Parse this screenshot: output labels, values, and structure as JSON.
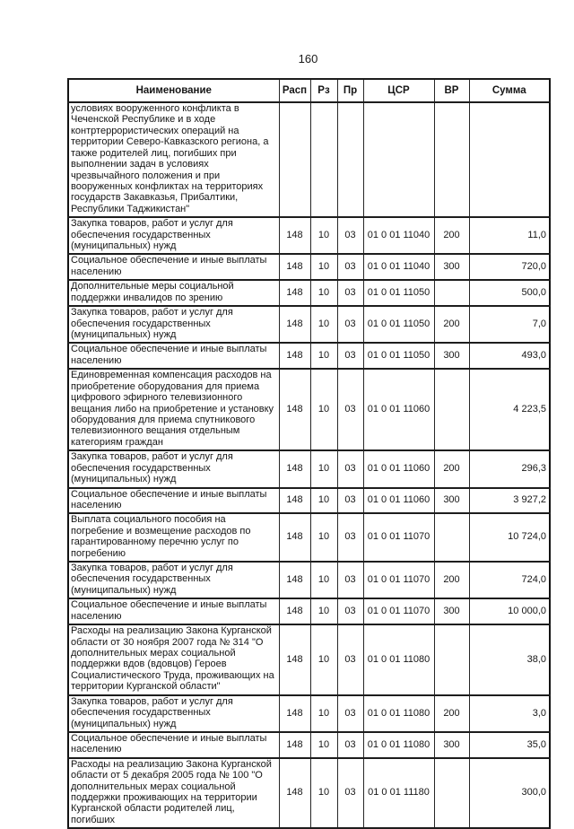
{
  "page": {
    "number": "160"
  },
  "table": {
    "column_keys": [
      "name",
      "rasp",
      "rz",
      "pr",
      "csr",
      "vr",
      "summa"
    ],
    "headers": {
      "name": "Наименование",
      "rasp": "Расп",
      "rz": "Рз",
      "pr": "Пр",
      "csr": "ЦСР",
      "vr": "ВР",
      "summa": "Сумма"
    },
    "rows": [
      {
        "name": "условиях вооруженного конфликта в Чеченской Республике и в ходе контртеррористических операций на территории Северо-Кавказского региона, а также родителей лиц, погибших при выполнении задач в условиях чрезвычайного положения и при вооруженных конфликтах на территориях государств Закавказья, Прибалтики, Республики Таджикистан\"",
        "rasp": "",
        "rz": "",
        "pr": "",
        "csr": "",
        "vr": "",
        "summa": ""
      },
      {
        "name": "Закупка товаров, работ и услуг для обеспечения государственных (муниципальных) нужд",
        "rasp": "148",
        "rz": "10",
        "pr": "03",
        "csr": "01 0 01 11040",
        "vr": "200",
        "summa": "11,0"
      },
      {
        "name": "Социальное обеспечение и иные выплаты населению",
        "rasp": "148",
        "rz": "10",
        "pr": "03",
        "csr": "01 0 01 11040",
        "vr": "300",
        "summa": "720,0"
      },
      {
        "name": "Дополнительные меры социальной поддержки инвалидов по зрению",
        "rasp": "148",
        "rz": "10",
        "pr": "03",
        "csr": "01 0 01 11050",
        "vr": "",
        "summa": "500,0"
      },
      {
        "name": "Закупка товаров, работ и услуг для обеспечения государственных (муниципальных) нужд",
        "rasp": "148",
        "rz": "10",
        "pr": "03",
        "csr": "01 0 01 11050",
        "vr": "200",
        "summa": "7,0"
      },
      {
        "name": "Социальное обеспечение и иные выплаты населению",
        "rasp": "148",
        "rz": "10",
        "pr": "03",
        "csr": "01 0 01 11050",
        "vr": "300",
        "summa": "493,0"
      },
      {
        "name": "Единовременная компенсация расходов на приобретение оборудования для приема цифрового эфирного телевизионного вещания либо на приобретение и установку оборудования для приема спутникового телевизионного вещания отдельным категориям граждан",
        "rasp": "148",
        "rz": "10",
        "pr": "03",
        "csr": "01 0 01 11060",
        "vr": "",
        "summa": "4 223,5"
      },
      {
        "name": "Закупка товаров, работ и услуг для обеспечения государственных (муниципальных) нужд",
        "rasp": "148",
        "rz": "10",
        "pr": "03",
        "csr": "01 0 01 11060",
        "vr": "200",
        "summa": "296,3"
      },
      {
        "name": "Социальное обеспечение и иные выплаты населению",
        "rasp": "148",
        "rz": "10",
        "pr": "03",
        "csr": "01 0 01 11060",
        "vr": "300",
        "summa": "3 927,2"
      },
      {
        "name": "Выплата социального пособия на погребение и возмещение расходов по гарантированному перечню услуг по погребению",
        "rasp": "148",
        "rz": "10",
        "pr": "03",
        "csr": "01 0 01 11070",
        "vr": "",
        "summa": "10 724,0"
      },
      {
        "name": "Закупка товаров, работ и услуг для обеспечения государственных (муниципальных) нужд",
        "rasp": "148",
        "rz": "10",
        "pr": "03",
        "csr": "01 0 01 11070",
        "vr": "200",
        "summa": "724,0"
      },
      {
        "name": "Социальное обеспечение и иные выплаты населению",
        "rasp": "148",
        "rz": "10",
        "pr": "03",
        "csr": "01 0 01 11070",
        "vr": "300",
        "summa": "10 000,0"
      },
      {
        "name": "Расходы на реализацию Закона Курганской области от 30 ноября 2007 года № 314 \"О дополнительных мерах социальной поддержки вдов (вдовцов) Героев Социалистического Труда, проживающих на территории Курганской области\"",
        "rasp": "148",
        "rz": "10",
        "pr": "03",
        "csr": "01 0 01 11080",
        "vr": "",
        "summa": "38,0"
      },
      {
        "name": "Закупка товаров, работ и услуг для обеспечения государственных (муниципальных) нужд",
        "rasp": "148",
        "rz": "10",
        "pr": "03",
        "csr": "01 0 01 11080",
        "vr": "200",
        "summa": "3,0"
      },
      {
        "name": "Социальное обеспечение и иные выплаты населению",
        "rasp": "148",
        "rz": "10",
        "pr": "03",
        "csr": "01 0 01 11080",
        "vr": "300",
        "summa": "35,0"
      },
      {
        "name": "Расходы на реализацию Закона Курганской области от 5 декабря 2005 года № 100 \"О дополнительных мерах социальной поддержки проживающих на территории Курганской области родителей лиц, погибших",
        "rasp": "148",
        "rz": "10",
        "pr": "03",
        "csr": "01 0 01 11180",
        "vr": "",
        "summa": "300,0"
      }
    ]
  }
}
